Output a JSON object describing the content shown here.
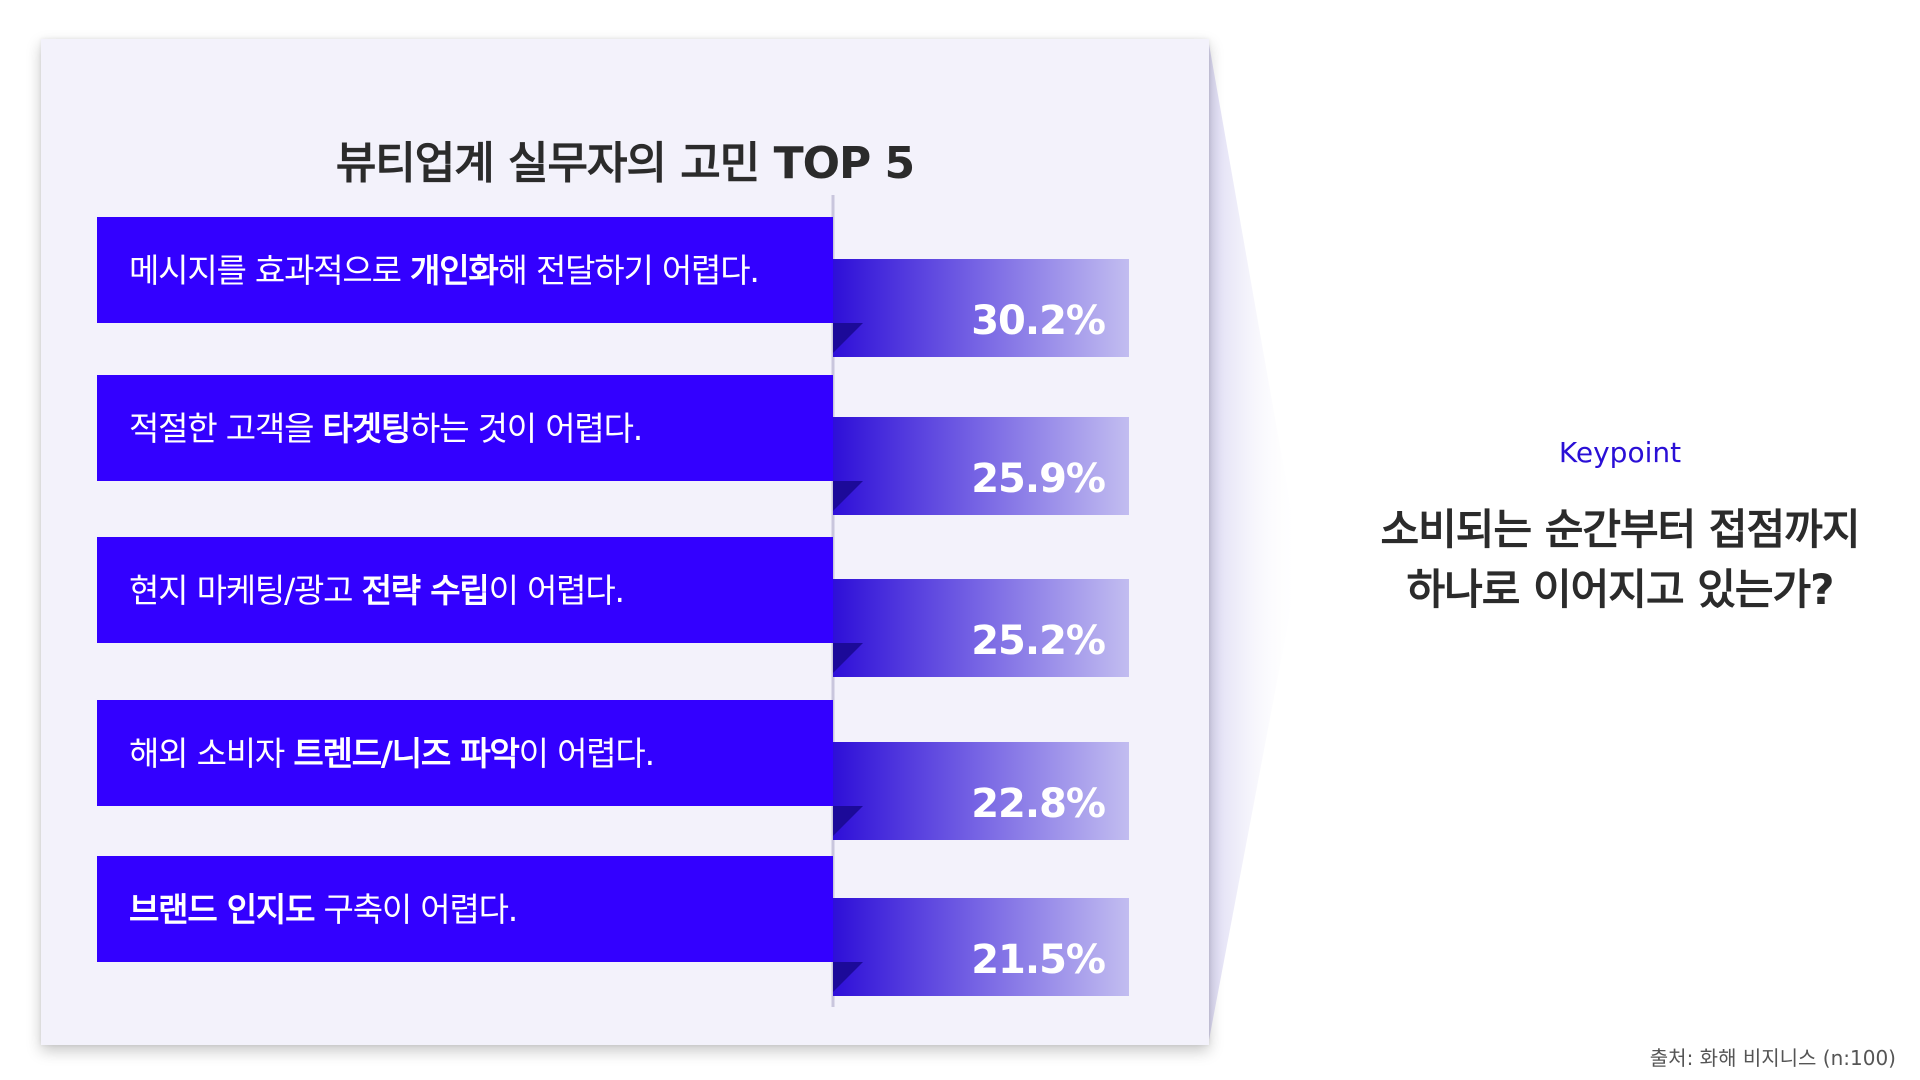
{
  "chart_data": {
    "type": "bar",
    "title": "뷰티업계 실무자의 고민 TOP 5",
    "categories": [
      "메시지를 효과적으로 개인화해 전달하기 어렵다.",
      "적절한 고객을 타겟팅하는 것이 어렵다.",
      "현지 마케팅/광고 전략 수립이 어렵다.",
      "해외 소비자 트렌드/니즈 파악이 어렵다.",
      "브랜드 인지도 구축이 어렵다."
    ],
    "label_parts": [
      [
        {
          "t": "메시지를 효과적으로 ",
          "b": false
        },
        {
          "t": "개인화",
          "b": true
        },
        {
          "t": "해 전달하기 어렵다.",
          "b": false
        }
      ],
      [
        {
          "t": "적절한 고객을 ",
          "b": false
        },
        {
          "t": "타겟팅",
          "b": true
        },
        {
          "t": "하는 것이 어렵다.",
          "b": false
        }
      ],
      [
        {
          "t": "현지 마케팅/광고 ",
          "b": false
        },
        {
          "t": "전략 수립",
          "b": true
        },
        {
          "t": "이 어렵다.",
          "b": false
        }
      ],
      [
        {
          "t": "해외 소비자 ",
          "b": false
        },
        {
          "t": "트렌드/니즈 파악",
          "b": true
        },
        {
          "t": "이 어렵다.",
          "b": false
        }
      ],
      [
        {
          "t": "브랜드 인지도",
          "b": true
        },
        {
          "t": " 구축이 어렵다.",
          "b": false
        }
      ]
    ],
    "values": [
      30.2,
      25.9,
      25.2,
      22.8,
      21.5
    ],
    "value_labels": [
      "30.2%",
      "25.9%",
      "25.2%",
      "22.8%",
      "21.5%"
    ],
    "unit": "%",
    "colors": {
      "label_bar": "#3300ff",
      "value_bar_start": "#2e0fd8",
      "value_bar_end": "#c2bdf0",
      "fold": "#1c0a99",
      "value_text": "#ffffff"
    }
  },
  "keypoint": {
    "label": "Keypoint",
    "line1": "소비되는 순간부터 접점까지",
    "line2": "하나로 이어지고 있는가?"
  },
  "source": "출처: 화해 비지니스 (n:100)"
}
